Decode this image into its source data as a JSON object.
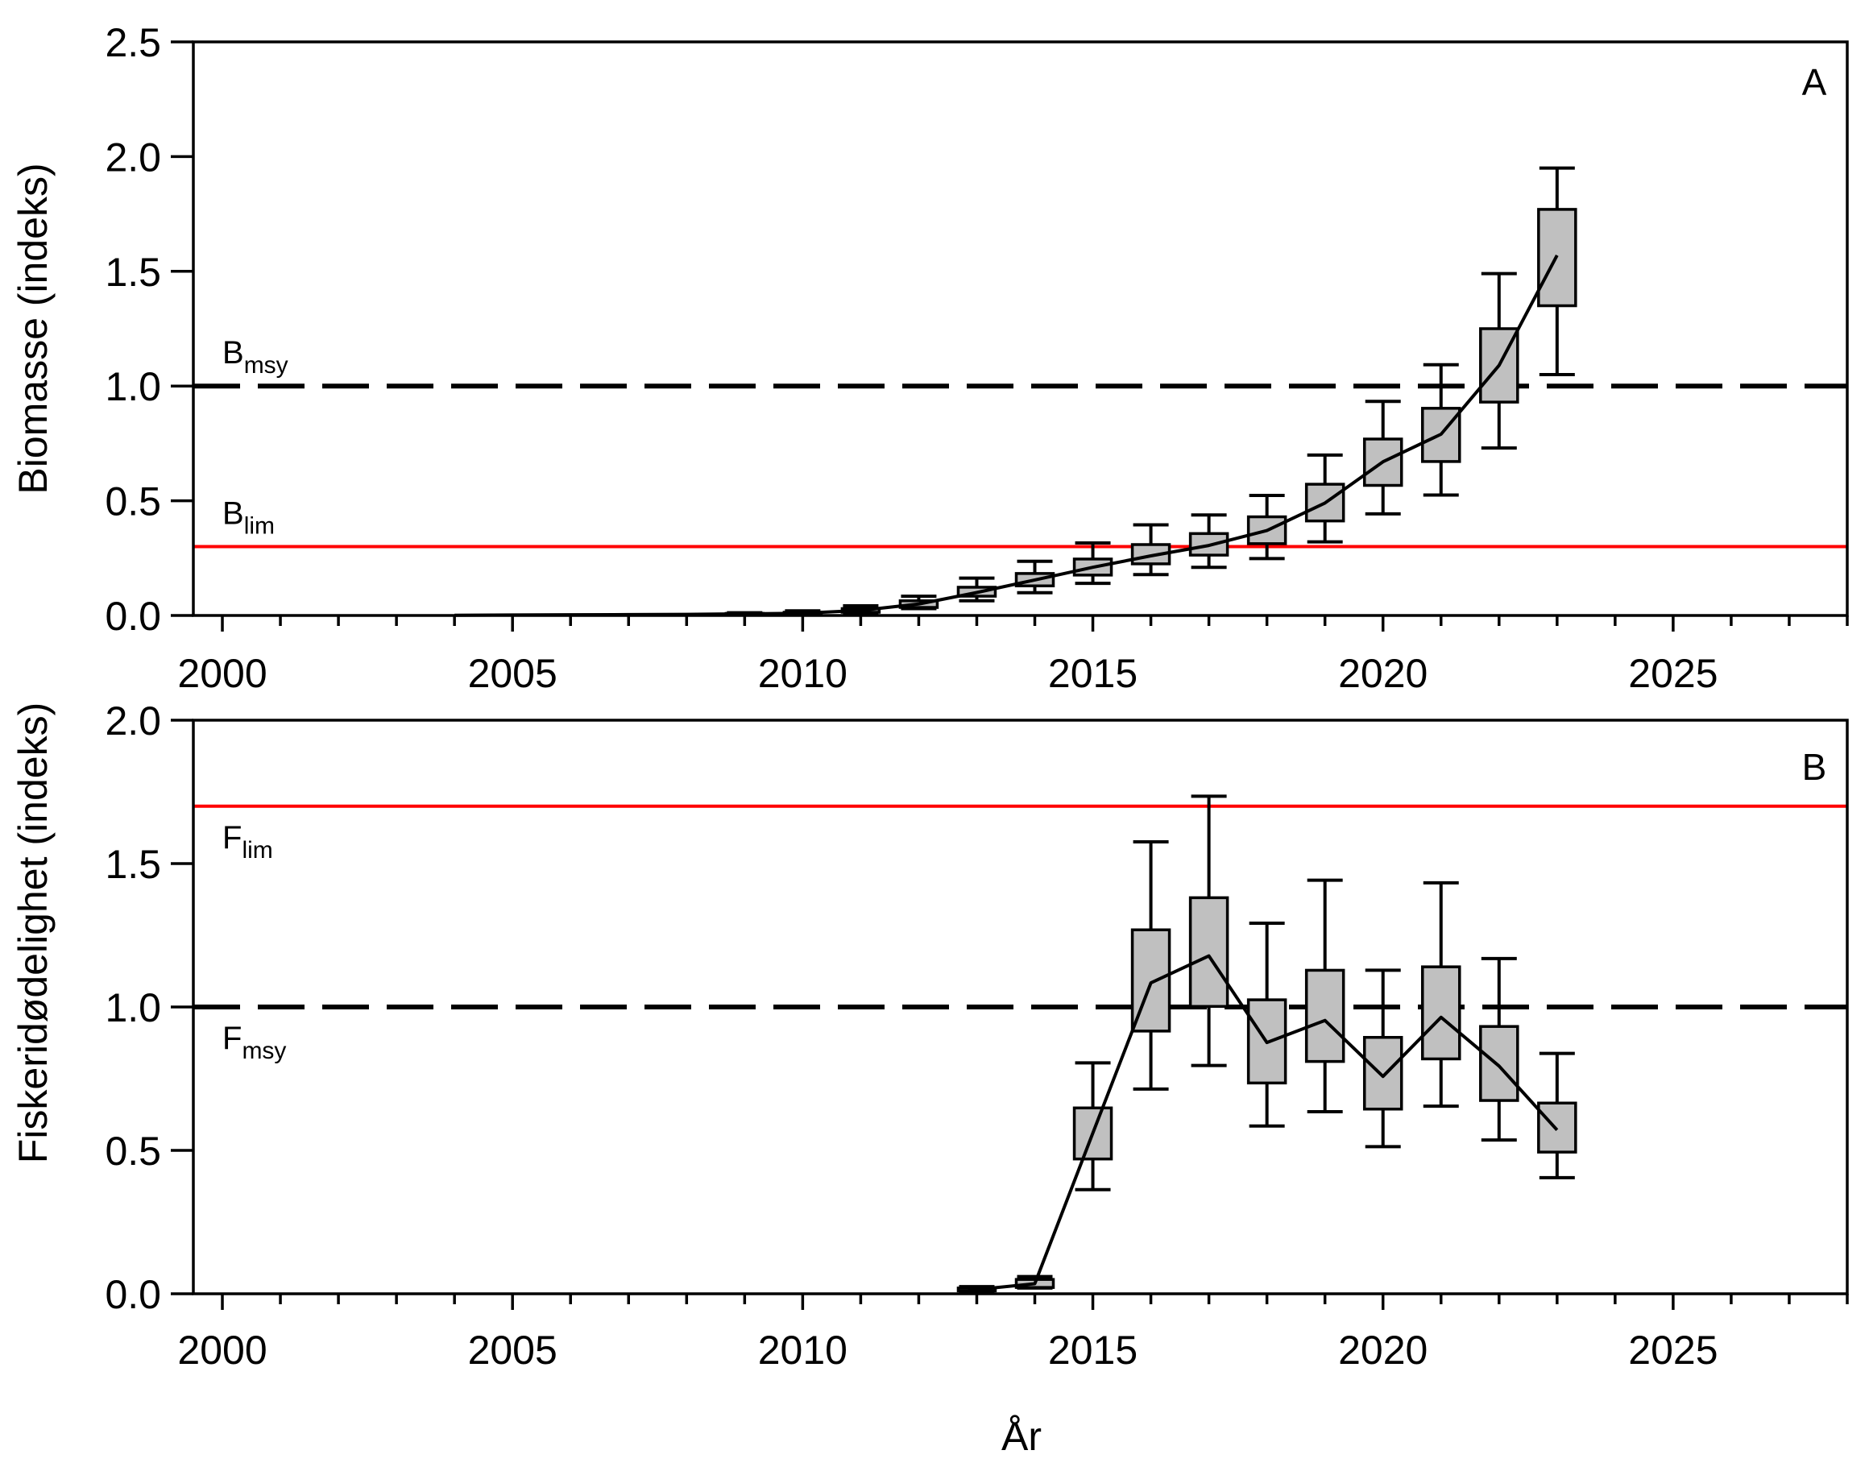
{
  "figure": {
    "x_axis_title": "År",
    "colors": {
      "limit_line": "#ff0000",
      "box_fill": "#c0c0c0",
      "ink": "#000000",
      "background": "#ffffff"
    }
  },
  "chart_data": [
    {
      "panel": "A",
      "type": "box",
      "title": "",
      "xlabel": "År",
      "ylabel": "Biomasse (indeks)",
      "xlim": [
        1999.5,
        2028
      ],
      "ylim": [
        0,
        2.5
      ],
      "x_ticks": [
        2000,
        2005,
        2010,
        2015,
        2020,
        2025
      ],
      "y_ticks": [
        "0.0",
        "0.5",
        "1.0",
        "1.5",
        "2.0",
        "2.5"
      ],
      "grid": false,
      "reference_lines": [
        {
          "name": "Bmsy",
          "label_main": "B",
          "label_sub": "msy",
          "value": 1.0,
          "color": "#000000",
          "style": "long-dash"
        },
        {
          "name": "Blim",
          "label_main": "B",
          "label_sub": "lim",
          "value": 0.3,
          "color": "#ff0000",
          "style": "solid"
        }
      ],
      "median_line": {
        "years": [
          2004,
          2005,
          2006,
          2007,
          2008,
          2009,
          2010,
          2011,
          2012,
          2013,
          2014,
          2015,
          2016,
          2017,
          2018,
          2019,
          2020,
          2021,
          2022,
          2023
        ],
        "values": [
          0.001,
          0.002,
          0.003,
          0.004,
          0.005,
          0.007,
          0.01,
          0.022,
          0.05,
          0.1,
          0.155,
          0.21,
          0.26,
          0.305,
          0.37,
          0.49,
          0.67,
          0.79,
          1.09,
          1.57
        ]
      },
      "boxes": [
        {
          "year": 2009,
          "whisker_low": 0.003,
          "q1": 0.005,
          "q3": 0.009,
          "whisker_high": 0.012
        },
        {
          "year": 2010,
          "whisker_low": 0.005,
          "q1": 0.008,
          "q3": 0.014,
          "whisker_high": 0.02
        },
        {
          "year": 2011,
          "whisker_low": 0.007,
          "q1": 0.014,
          "q3": 0.03,
          "whisker_high": 0.042
        },
        {
          "year": 2012,
          "whisker_low": 0.03,
          "q1": 0.035,
          "q3": 0.064,
          "whisker_high": 0.084
        },
        {
          "year": 2013,
          "whisker_low": 0.064,
          "q1": 0.084,
          "q3": 0.123,
          "whisker_high": 0.163
        },
        {
          "year": 2014,
          "whisker_low": 0.099,
          "q1": 0.129,
          "q3": 0.183,
          "whisker_high": 0.236
        },
        {
          "year": 2015,
          "whisker_low": 0.14,
          "q1": 0.176,
          "q3": 0.246,
          "whisker_high": 0.316
        },
        {
          "year": 2016,
          "whisker_low": 0.178,
          "q1": 0.225,
          "q3": 0.309,
          "whisker_high": 0.395
        },
        {
          "year": 2017,
          "whisker_low": 0.21,
          "q1": 0.263,
          "q3": 0.357,
          "whisker_high": 0.438
        },
        {
          "year": 2018,
          "whisker_low": 0.248,
          "q1": 0.313,
          "q3": 0.43,
          "whisker_high": 0.523
        },
        {
          "year": 2019,
          "whisker_low": 0.321,
          "q1": 0.412,
          "q3": 0.572,
          "whisker_high": 0.699
        },
        {
          "year": 2020,
          "whisker_low": 0.443,
          "q1": 0.567,
          "q3": 0.769,
          "whisker_high": 0.933
        },
        {
          "year": 2021,
          "whisker_low": 0.525,
          "q1": 0.671,
          "q3": 0.903,
          "whisker_high": 1.093
        },
        {
          "year": 2022,
          "whisker_low": 0.73,
          "q1": 0.93,
          "q3": 1.25,
          "whisker_high": 1.49
        },
        {
          "year": 2023,
          "whisker_low": 1.05,
          "q1": 1.35,
          "q3": 1.77,
          "whisker_high": 1.95
        }
      ]
    },
    {
      "panel": "B",
      "type": "box",
      "title": "",
      "xlabel": "År",
      "ylabel": "Fiskeridødelighet (indeks)",
      "xlim": [
        1999.5,
        2028
      ],
      "ylim": [
        0,
        2.0
      ],
      "x_ticks": [
        2000,
        2005,
        2010,
        2015,
        2020,
        2025
      ],
      "y_ticks": [
        "0.0",
        "0.5",
        "1.0",
        "1.5",
        "2.0"
      ],
      "grid": false,
      "reference_lines": [
        {
          "name": "Flim",
          "label_main": "F",
          "label_sub": "lim",
          "value": 1.7,
          "color": "#ff0000",
          "style": "solid"
        },
        {
          "name": "Fmsy",
          "label_main": "F",
          "label_sub": "msy",
          "value": 1.0,
          "color": "#000000",
          "style": "long-dash"
        }
      ],
      "median_line": {
        "years": [
          2012.85,
          2013,
          2014,
          2015,
          2016,
          2017,
          2018,
          2019,
          2020,
          2021,
          2022,
          2023
        ],
        "values": [
          0.012,
          0.015,
          0.035,
          0.56,
          1.084,
          1.178,
          0.876,
          0.953,
          0.758,
          0.964,
          0.794,
          0.571
        ]
      },
      "boxes": [
        {
          "year": 2013,
          "whisker_low": 0.008,
          "q1": 0.01,
          "q3": 0.02,
          "whisker_high": 0.025
        },
        {
          "year": 2014,
          "whisker_low": 0.02,
          "q1": 0.022,
          "q3": 0.05,
          "whisker_high": 0.06
        },
        {
          "year": 2015,
          "whisker_low": 0.363,
          "q1": 0.47,
          "q3": 0.648,
          "whisker_high": 0.805
        },
        {
          "year": 2016,
          "whisker_low": 0.714,
          "q1": 0.916,
          "q3": 1.269,
          "whisker_high": 1.576
        },
        {
          "year": 2017,
          "whisker_low": 0.796,
          "q1": 1.002,
          "q3": 1.381,
          "whisker_high": 1.735
        },
        {
          "year": 2018,
          "whisker_low": 0.585,
          "q1": 0.735,
          "q3": 1.025,
          "whisker_high": 1.292
        },
        {
          "year": 2019,
          "whisker_low": 0.635,
          "q1": 0.81,
          "q3": 1.128,
          "whisker_high": 1.442
        },
        {
          "year": 2020,
          "whisker_low": 0.513,
          "q1": 0.644,
          "q3": 0.894,
          "whisker_high": 1.128
        },
        {
          "year": 2021,
          "whisker_low": 0.654,
          "q1": 0.819,
          "q3": 1.14,
          "whisker_high": 1.433
        },
        {
          "year": 2022,
          "whisker_low": 0.536,
          "q1": 0.674,
          "q3": 0.932,
          "whisker_high": 1.169
        },
        {
          "year": 2023,
          "whisker_low": 0.405,
          "q1": 0.494,
          "q3": 0.665,
          "whisker_high": 0.838
        }
      ]
    }
  ]
}
